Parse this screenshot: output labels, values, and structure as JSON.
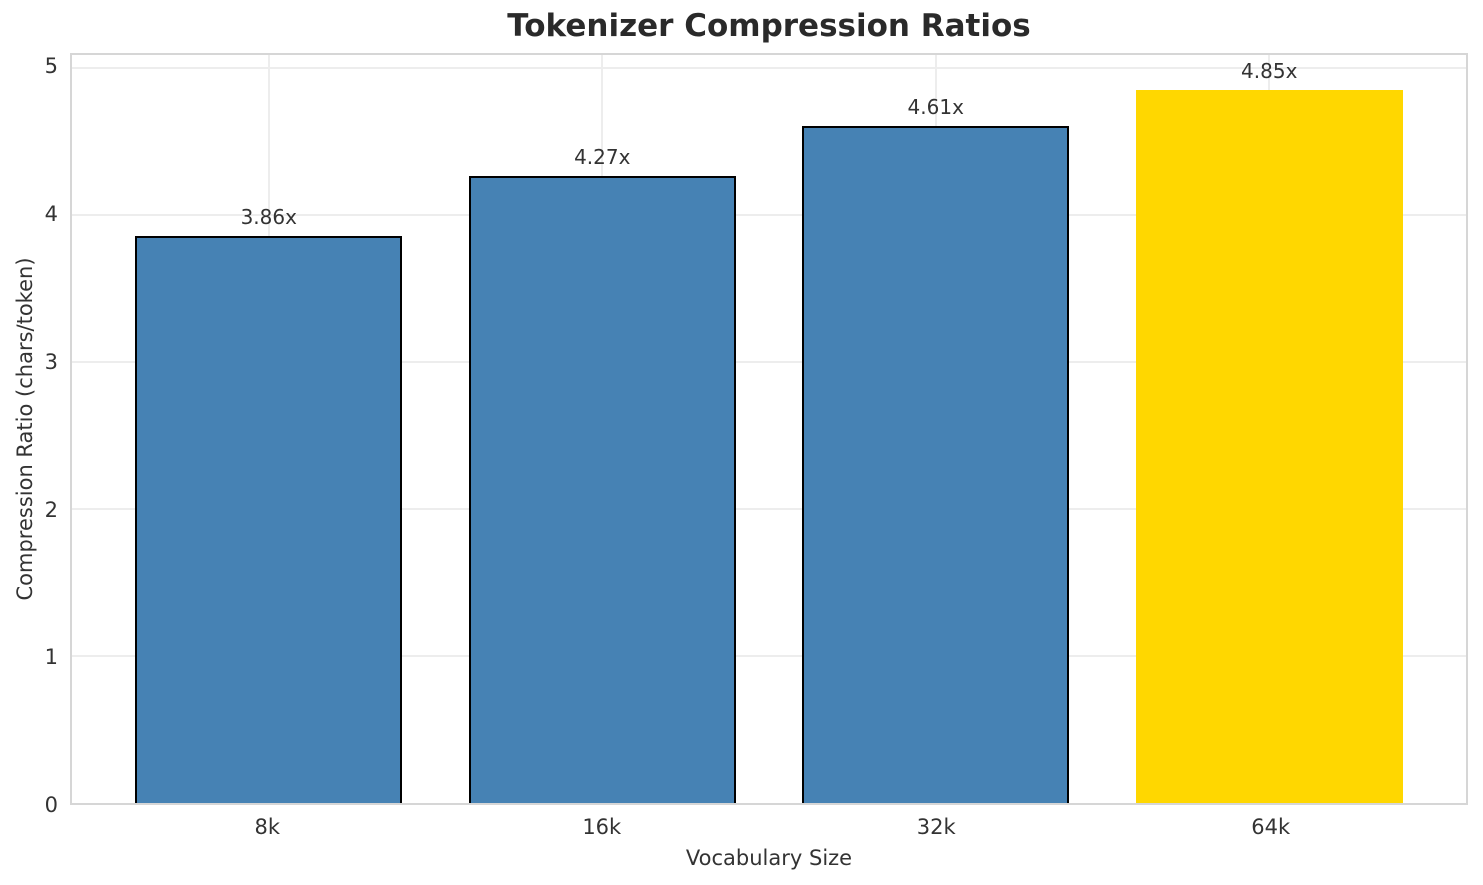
{
  "chart_data": {
    "type": "bar",
    "title": "Tokenizer Compression Ratios",
    "xlabel": "Vocabulary Size",
    "ylabel": "Compression Ratio (chars/token)",
    "categories": [
      "8k",
      "16k",
      "32k",
      "64k"
    ],
    "values": [
      3.86,
      4.27,
      4.61,
      4.85
    ],
    "bar_labels": [
      "3.86x",
      "4.27x",
      "4.61x",
      "4.85x"
    ],
    "bar_colors": [
      "#4682B4",
      "#4682B4",
      "#4682B4",
      "#FFD700"
    ],
    "bar_edge_colors": [
      "#000000",
      "#000000",
      "#000000",
      "none"
    ],
    "yticks": [
      0,
      1,
      2,
      3,
      4,
      5
    ],
    "ylim": [
      0,
      5.09
    ],
    "xlim": [
      -0.59,
      3.59
    ],
    "bar_width": 0.8,
    "grid": "both",
    "legend": "none",
    "colors": {
      "primary_bar": "#4682B4",
      "highlight_bar": "#FFD700",
      "bar_edge": "#000000",
      "grid": "#ededed",
      "spine": "#d6d6d6",
      "title": "#2a2a2a",
      "text": "#333333",
      "background": "#ffffff"
    }
  }
}
